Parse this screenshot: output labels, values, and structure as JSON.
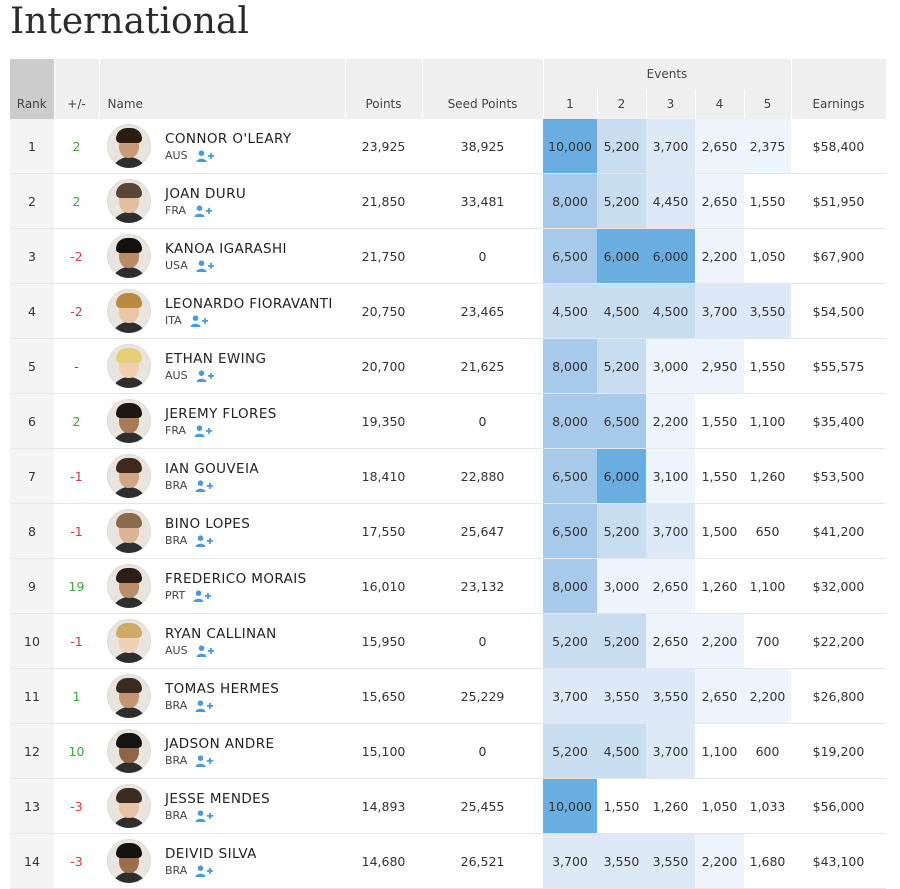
{
  "page": {
    "title": "International"
  },
  "table": {
    "headers": {
      "rank": "Rank",
      "delta": "+/-",
      "name": "Name",
      "points": "Points",
      "seed_points": "Seed Points",
      "events": "Events",
      "event_numbers": [
        "1",
        "2",
        "3",
        "4",
        "5"
      ],
      "earnings": "Earnings"
    },
    "colors": {
      "delta_positive": "#3aa83a",
      "delta_negative": "#d63a3a",
      "event_shade_darkest": "#6aade0",
      "event_shade_lightest": "#eef4fb",
      "follow_icon": "#4a9ad8"
    },
    "icons": {
      "follow": "add-user-icon"
    },
    "rows": [
      {
        "rank": "1",
        "delta": "2",
        "name": "CONNOR O'LEARY",
        "country": "AUS",
        "points": "23,925",
        "seed_points": "38,925",
        "events": [
          "10,000",
          "5,200",
          "3,700",
          "2,650",
          "2,375"
        ],
        "earnings": "$58,400"
      },
      {
        "rank": "2",
        "delta": "2",
        "name": "JOAN DURU",
        "country": "FRA",
        "points": "21,850",
        "seed_points": "33,481",
        "events": [
          "8,000",
          "5,200",
          "4,450",
          "2,650",
          "1,550"
        ],
        "earnings": "$51,950"
      },
      {
        "rank": "3",
        "delta": "-2",
        "name": "KANOA IGARASHI",
        "country": "USA",
        "points": "21,750",
        "seed_points": "0",
        "events": [
          "6,500",
          "6,000",
          "6,000",
          "2,200",
          "1,050"
        ],
        "earnings": "$67,900"
      },
      {
        "rank": "4",
        "delta": "-2",
        "name": "LEONARDO FIORAVANTI",
        "country": "ITA",
        "points": "20,750",
        "seed_points": "23,465",
        "events": [
          "4,500",
          "4,500",
          "4,500",
          "3,700",
          "3,550"
        ],
        "earnings": "$54,500"
      },
      {
        "rank": "5",
        "delta": "-",
        "name": "ETHAN EWING",
        "country": "AUS",
        "points": "20,700",
        "seed_points": "21,625",
        "events": [
          "8,000",
          "5,200",
          "3,000",
          "2,950",
          "1,550"
        ],
        "earnings": "$55,575"
      },
      {
        "rank": "6",
        "delta": "2",
        "name": "JEREMY FLORES",
        "country": "FRA",
        "points": "19,350",
        "seed_points": "0",
        "events": [
          "8,000",
          "6,500",
          "2,200",
          "1,550",
          "1,100"
        ],
        "earnings": "$35,400"
      },
      {
        "rank": "7",
        "delta": "-1",
        "name": "IAN GOUVEIA",
        "country": "BRA",
        "points": "18,410",
        "seed_points": "22,880",
        "events": [
          "6,500",
          "6,000",
          "3,100",
          "1,550",
          "1,260"
        ],
        "earnings": "$53,500"
      },
      {
        "rank": "8",
        "delta": "-1",
        "name": "BINO LOPES",
        "country": "BRA",
        "points": "17,550",
        "seed_points": "25,647",
        "events": [
          "6,500",
          "5,200",
          "3,700",
          "1,500",
          "650"
        ],
        "earnings": "$41,200"
      },
      {
        "rank": "9",
        "delta": "19",
        "name": "FREDERICO MORAIS",
        "country": "PRT",
        "points": "16,010",
        "seed_points": "23,132",
        "events": [
          "8,000",
          "3,000",
          "2,650",
          "1,260",
          "1,100"
        ],
        "earnings": "$32,000"
      },
      {
        "rank": "10",
        "delta": "-1",
        "name": "RYAN CALLINAN",
        "country": "AUS",
        "points": "15,950",
        "seed_points": "0",
        "events": [
          "5,200",
          "5,200",
          "2,650",
          "2,200",
          "700"
        ],
        "earnings": "$22,200"
      },
      {
        "rank": "11",
        "delta": "1",
        "name": "TOMAS HERMES",
        "country": "BRA",
        "points": "15,650",
        "seed_points": "25,229",
        "events": [
          "3,700",
          "3,550",
          "3,550",
          "2,650",
          "2,200"
        ],
        "earnings": "$26,800"
      },
      {
        "rank": "12",
        "delta": "10",
        "name": "JADSON ANDRE",
        "country": "BRA",
        "points": "15,100",
        "seed_points": "0",
        "events": [
          "5,200",
          "4,500",
          "3,700",
          "1,100",
          "600"
        ],
        "earnings": "$19,200"
      },
      {
        "rank": "13",
        "delta": "-3",
        "name": "JESSE MENDES",
        "country": "BRA",
        "points": "14,893",
        "seed_points": "25,455",
        "events": [
          "10,000",
          "1,550",
          "1,260",
          "1,050",
          "1,033"
        ],
        "earnings": "$56,000"
      },
      {
        "rank": "14",
        "delta": "-3",
        "name": "DEIVID SILVA",
        "country": "BRA",
        "points": "14,680",
        "seed_points": "26,521",
        "events": [
          "3,700",
          "3,550",
          "3,550",
          "2,200",
          "1,680"
        ],
        "earnings": "$43,100"
      }
    ]
  }
}
